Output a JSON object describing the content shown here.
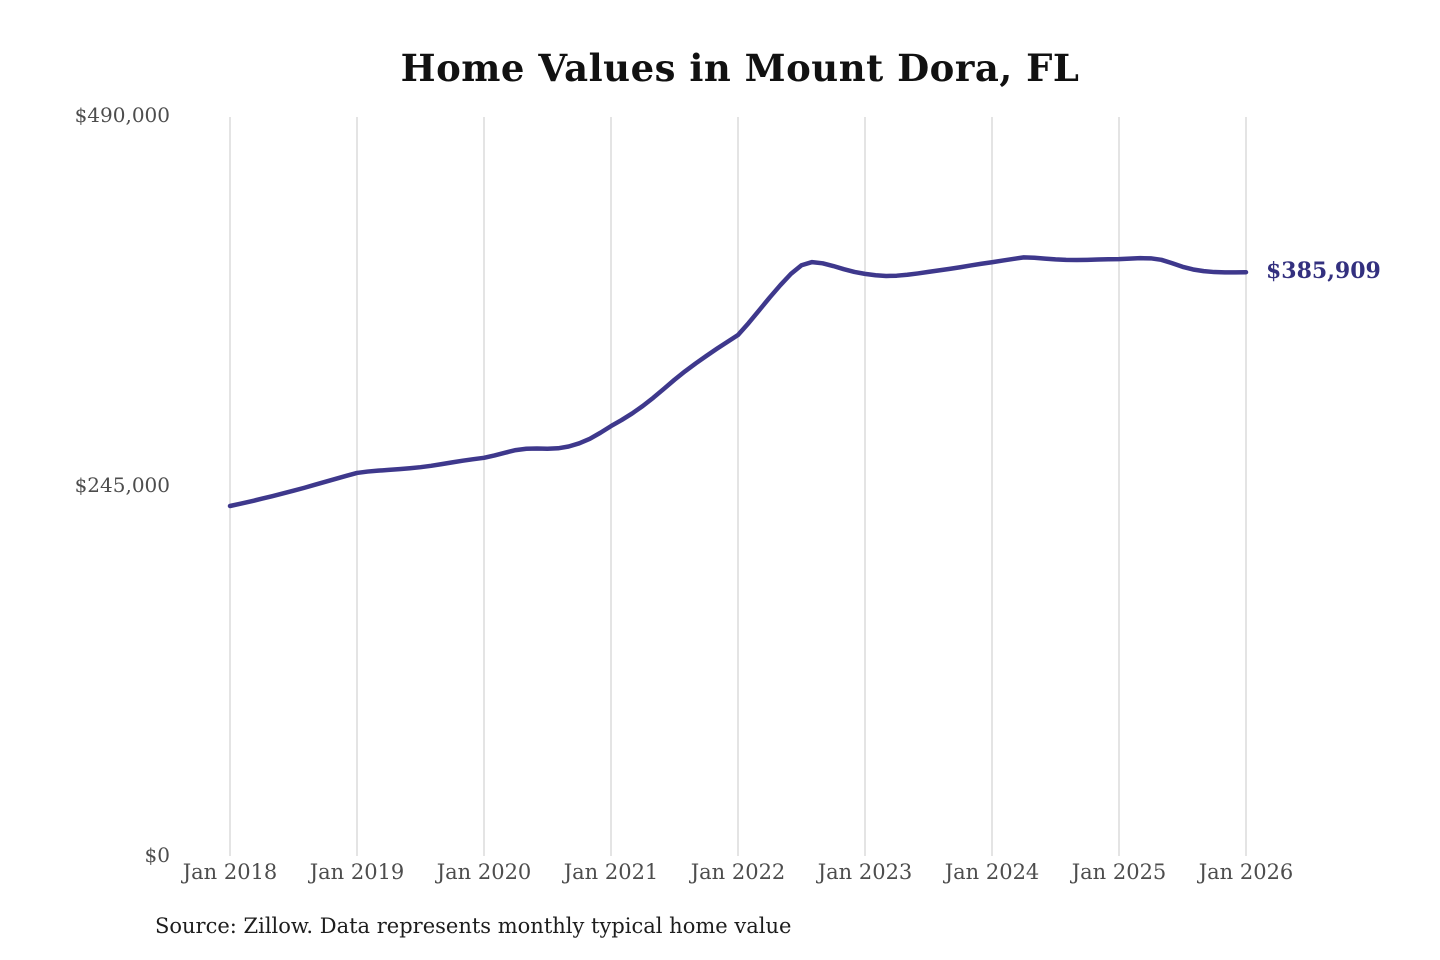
{
  "title": "Home Values in Mount Dora, FL",
  "source_note": "Source: Zillow. Data represents monthly typical home value",
  "end_label": "$385,909",
  "colors": {
    "background": "#ffffff",
    "line": "#3e388c",
    "end_label_text": "#33307f",
    "gridline": "#c9c9c9",
    "tick_text": "#4d4d4d",
    "title_text": "#111111",
    "source_text": "#1d1d1d"
  },
  "chart_data": {
    "type": "line",
    "title": "Home Values in Mount Dora, FL",
    "xlabel": "",
    "ylabel": "",
    "x_start": "Jan 2018",
    "x_end": "Jan 2026",
    "frequency": "monthly",
    "x_tick_labels": [
      "Jan 2018",
      "Jan 2019",
      "Jan 2020",
      "Jan 2021",
      "Jan 2022",
      "Jan 2023",
      "Jan 2024",
      "Jan 2025",
      "Jan 2026"
    ],
    "y_ticks": [
      0,
      245000,
      490000
    ],
    "y_tick_labels": [
      "$0",
      "$245,000",
      "$490,000"
    ],
    "ylim": [
      0,
      490000
    ],
    "grid": "vertical-only",
    "legend": "none",
    "final_value": 385909,
    "final_value_label": "$385,909",
    "series": [
      {
        "name": "Monthly typical home value",
        "values": [
          231100,
          232600,
          234200,
          235900,
          237600,
          239400,
          241200,
          243100,
          245100,
          247100,
          249100,
          251100,
          253000,
          253900,
          254500,
          255000,
          255500,
          256100,
          256800,
          257700,
          258800,
          260000,
          261100,
          262100,
          263000,
          264600,
          266400,
          268100,
          269000,
          269200,
          269000,
          269300,
          270500,
          272600,
          275600,
          279600,
          284000,
          288000,
          292400,
          297300,
          302800,
          308700,
          314700,
          320300,
          325500,
          330400,
          335200,
          339800,
          344300,
          352200,
          360700,
          369200,
          377300,
          384800,
          390500,
          392600,
          391800,
          390000,
          387900,
          386100,
          384800,
          383900,
          383400,
          383600,
          384200,
          385100,
          386100,
          387100,
          388100,
          389200,
          390400,
          391500,
          392500,
          393600,
          394700,
          395700,
          395500,
          394900,
          394400,
          394100,
          394000,
          394100,
          394300,
          394500,
          394600,
          394900,
          395200,
          395100,
          394100,
          391900,
          389500,
          387700,
          386600,
          386000,
          385800,
          385800,
          385909
        ]
      }
    ]
  }
}
